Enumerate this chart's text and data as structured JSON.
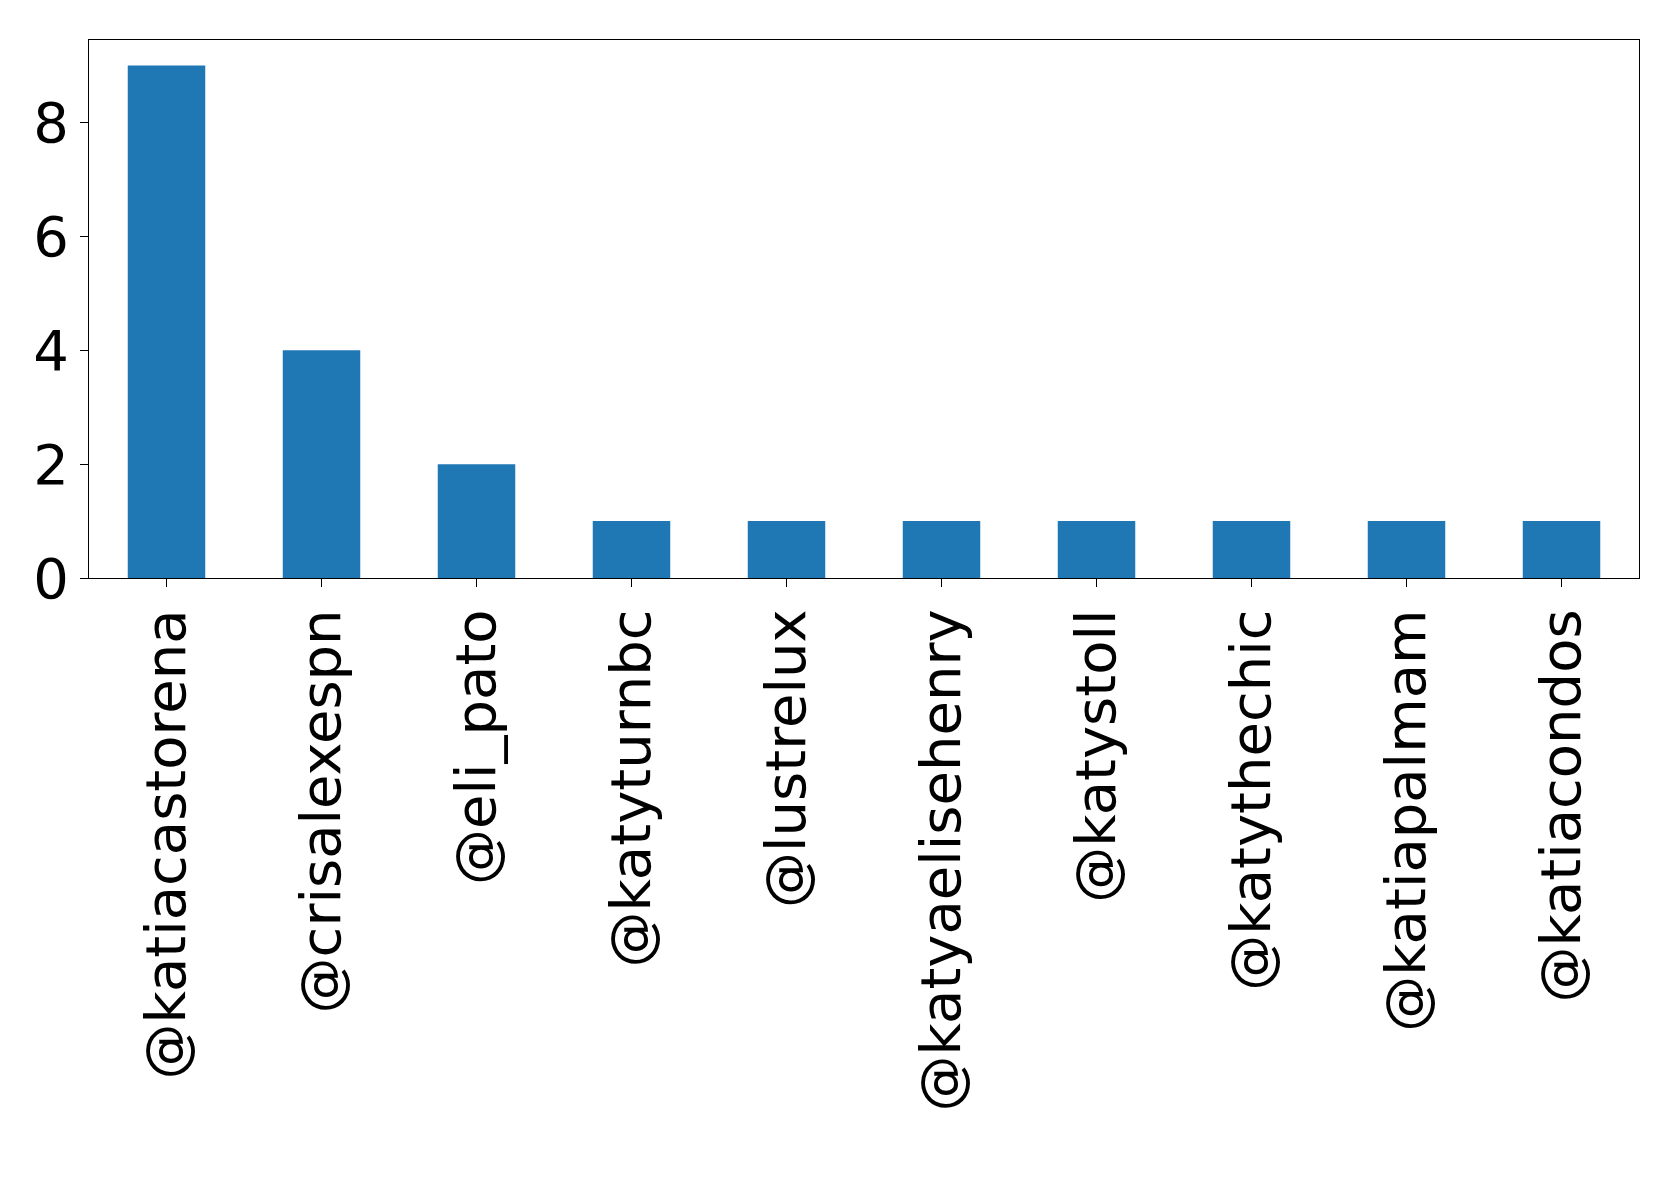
{
  "chart_data": {
    "type": "bar",
    "categories": [
      "@katiacastorena",
      "@crisalexespn",
      "@eli_pato",
      "@katyturnbc",
      "@lustrelux",
      "@katyaelisehenry",
      "@katystoll",
      "@katythechic",
      "@katiapalmam",
      "@katiacondos"
    ],
    "values": [
      9,
      4,
      2,
      1,
      1,
      1,
      1,
      1,
      1,
      1
    ],
    "color": "#1f77b4",
    "ylim": [
      0,
      9.45
    ],
    "yticks": [
      0,
      2,
      4,
      6,
      8
    ],
    "legend": false
  }
}
